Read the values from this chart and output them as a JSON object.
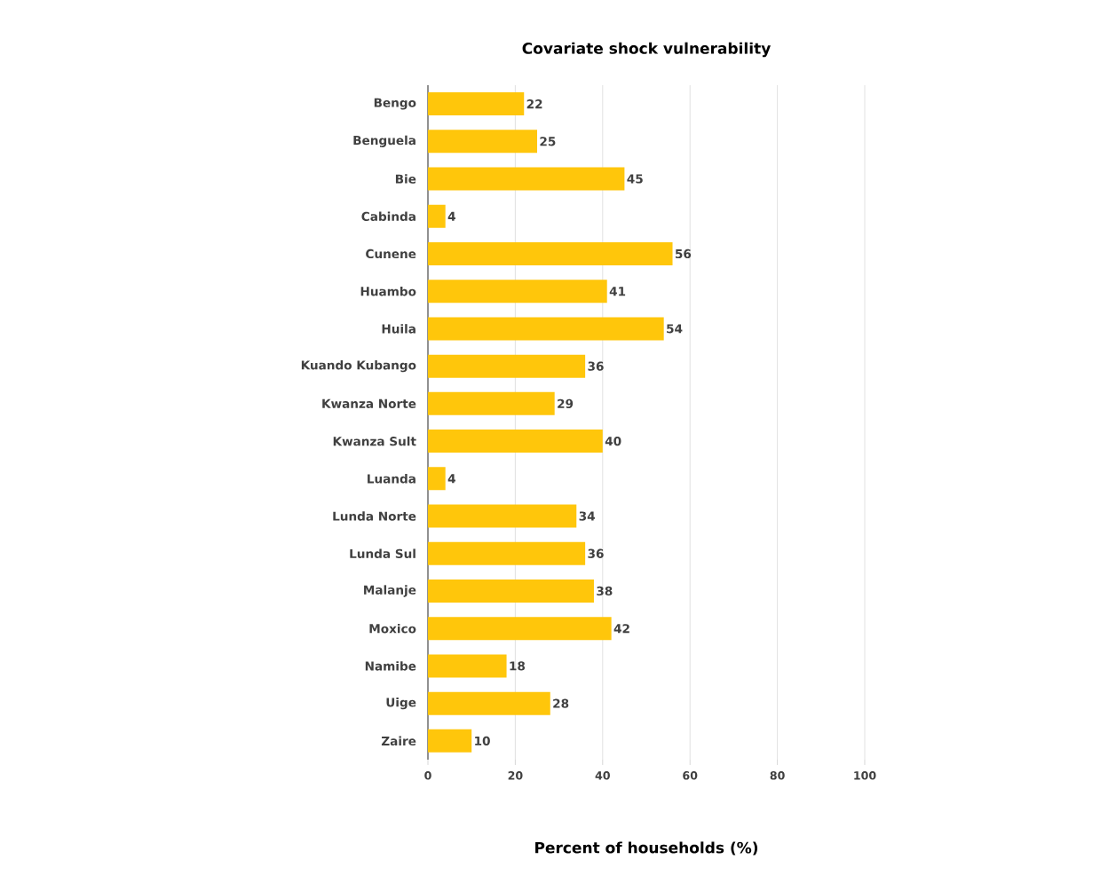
{
  "chart_data": {
    "type": "bar",
    "orientation": "horizontal",
    "title": "Covariate shock vulnerability",
    "xlabel": "Percent of households (%)",
    "categories": [
      "Bengo",
      "Benguela",
      "Bie",
      "Cabinda",
      "Cunene",
      "Huambo",
      "Huila",
      "Kuando Kubango",
      "Kwanza Norte",
      "Kwanza Sult",
      "Luanda",
      "Lunda Norte",
      "Lunda Sul",
      "Malanje",
      "Moxico",
      "Namibe",
      "Uige",
      "Zaire"
    ],
    "values": [
      22,
      25,
      45,
      4,
      56,
      41,
      54,
      36,
      29,
      40,
      4,
      34,
      36,
      38,
      42,
      18,
      28,
      10
    ],
    "color": "#ffc60b",
    "xlim": [
      0,
      100
    ],
    "xticks": [
      0,
      20,
      40,
      60,
      80,
      100
    ],
    "grid": "x",
    "data_labels": true
  }
}
